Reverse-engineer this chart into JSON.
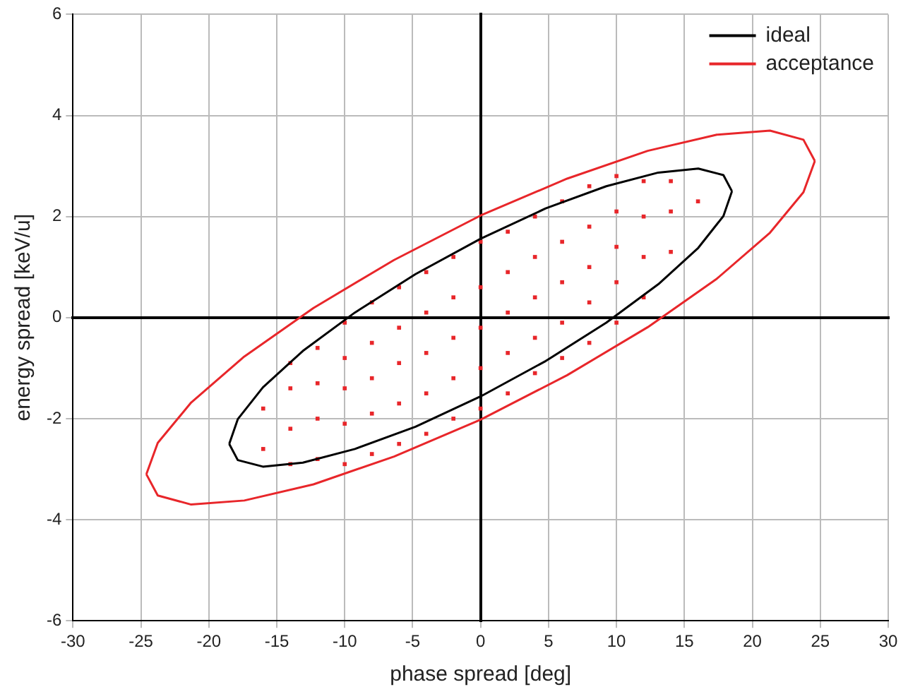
{
  "chart_data": {
    "type": "scatter",
    "xlabel": "phase spread [deg]",
    "ylabel": "energy spread [keV/u]",
    "xlim": [
      -30,
      30
    ],
    "xticks": [
      -30,
      -25,
      -20,
      -15,
      -10,
      -5,
      0,
      5,
      10,
      15,
      20,
      25,
      30
    ],
    "ylim": [
      -6,
      6
    ],
    "yticks": [
      -6,
      -4,
      -2,
      0,
      2,
      4,
      6
    ],
    "grid": true,
    "legend": "top right",
    "series": [
      {
        "type": "scatter",
        "color": "#e8262a",
        "marker": "square",
        "x": [
          -16,
          -16,
          -14,
          -14,
          -14,
          -14,
          -12,
          -12,
          -12,
          -12,
          -10,
          -10,
          -10,
          -10,
          -10,
          -8,
          -8,
          -8,
          -8,
          -8,
          -6,
          -6,
          -6,
          -6,
          -6,
          -4,
          -4,
          -4,
          -4,
          -4,
          -2,
          -2,
          -2,
          -2,
          -2,
          0,
          0,
          0,
          0,
          0,
          2,
          2,
          2,
          2,
          2,
          4,
          4,
          4,
          4,
          4,
          6,
          6,
          6,
          6,
          6,
          8,
          8,
          8,
          8,
          8,
          10,
          10,
          10,
          10,
          10,
          12,
          12,
          12,
          12,
          14,
          14,
          14,
          16
        ],
        "values": [
          -2.6,
          -1.8,
          -2.9,
          -2.2,
          -1.4,
          -0.9,
          -2.8,
          -2.0,
          -1.3,
          -0.6,
          -2.9,
          -2.1,
          -1.4,
          -0.8,
          -0.1,
          -2.7,
          -1.9,
          -1.2,
          -0.5,
          0.3,
          -2.5,
          -1.7,
          -0.9,
          -0.2,
          0.6,
          -2.3,
          -1.5,
          -0.7,
          0.1,
          0.9,
          -2.0,
          -1.2,
          -0.4,
          0.4,
          1.2,
          -1.8,
          -1.0,
          -0.2,
          0.6,
          1.5,
          -1.5,
          -0.7,
          0.1,
          0.9,
          1.7,
          -1.1,
          -0.4,
          0.4,
          1.2,
          2.0,
          -0.8,
          -0.1,
          0.7,
          1.5,
          2.3,
          -0.5,
          0.3,
          1.0,
          1.8,
          2.6,
          -0.1,
          0.7,
          1.4,
          2.1,
          2.8,
          0.4,
          1.2,
          2.0,
          2.7,
          1.3,
          2.1,
          2.7,
          2.3
        ]
      },
      {
        "type": "line",
        "name": "ideal",
        "color": "#000000",
        "marker": "none",
        "x": [
          -18.5,
          -17.87,
          -16.02,
          -13.08,
          -9.25,
          -4.79,
          0,
          4.79,
          9.25,
          13.08,
          16.02,
          17.87,
          18.5
        ],
        "values": [
          -2.5,
          -2.01,
          -1.38,
          -0.66,
          0.1,
          0.86,
          1.56,
          2.16,
          2.6,
          2.87,
          2.95,
          2.82,
          2.5
        ]
      },
      {
        "type": "line",
        "color": "#000000",
        "marker": "none",
        "x": [
          -18.5,
          -17.87,
          -16.02,
          -13.08,
          -9.25,
          -4.79,
          0,
          4.79,
          9.25,
          13.08,
          16.02,
          17.87,
          18.5
        ],
        "values": [
          -2.5,
          -2.82,
          -2.95,
          -2.87,
          -2.6,
          -2.16,
          -1.56,
          -0.86,
          -0.1,
          0.66,
          1.38,
          2.01,
          2.5
        ]
      },
      {
        "type": "line",
        "name": "acceptance",
        "color": "#e8262a",
        "marker": "none",
        "x": [
          -24.6,
          -23.76,
          -21.3,
          -17.39,
          -12.3,
          -6.37,
          0,
          6.37,
          12.3,
          17.39,
          21.3,
          23.76,
          24.6
        ],
        "values": [
          -3.1,
          -2.48,
          -1.68,
          -0.77,
          0.19,
          1.14,
          2.02,
          2.75,
          3.3,
          3.62,
          3.7,
          3.52,
          3.1
        ]
      },
      {
        "type": "line",
        "color": "#e8262a",
        "marker": "none",
        "x": [
          -24.6,
          -23.76,
          -21.3,
          -17.39,
          -12.3,
          -6.37,
          0,
          6.37,
          12.3,
          17.39,
          21.3,
          23.76,
          24.6
        ],
        "values": [
          -3.1,
          -3.52,
          -3.7,
          -3.62,
          -3.3,
          -2.75,
          -2.02,
          -1.14,
          -0.19,
          0.77,
          1.68,
          2.48,
          3.1
        ]
      }
    ]
  }
}
